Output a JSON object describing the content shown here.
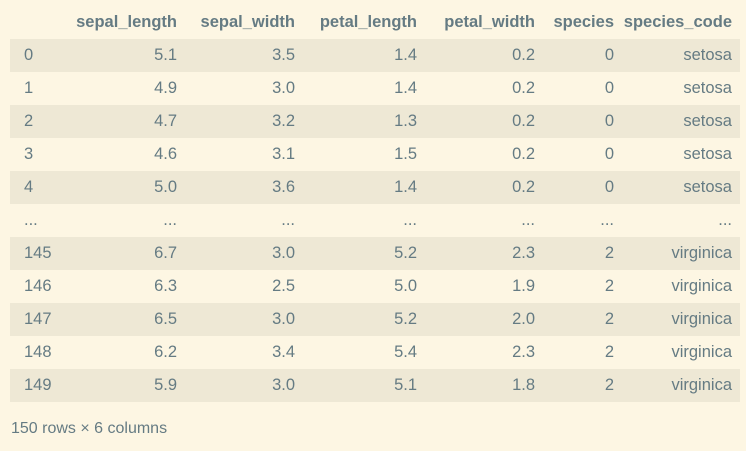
{
  "table": {
    "index_header": "",
    "columns": [
      "sepal_length",
      "sepal_width",
      "petal_length",
      "petal_width",
      "species",
      "species_code"
    ],
    "rows": [
      {
        "index": "0",
        "cells": [
          "5.1",
          "3.5",
          "1.4",
          "0.2",
          "0",
          "setosa"
        ]
      },
      {
        "index": "1",
        "cells": [
          "4.9",
          "3.0",
          "1.4",
          "0.2",
          "0",
          "setosa"
        ]
      },
      {
        "index": "2",
        "cells": [
          "4.7",
          "3.2",
          "1.3",
          "0.2",
          "0",
          "setosa"
        ]
      },
      {
        "index": "3",
        "cells": [
          "4.6",
          "3.1",
          "1.5",
          "0.2",
          "0",
          "setosa"
        ]
      },
      {
        "index": "4",
        "cells": [
          "5.0",
          "3.6",
          "1.4",
          "0.2",
          "0",
          "setosa"
        ]
      },
      {
        "index": "...",
        "cells": [
          "...",
          "...",
          "...",
          "...",
          "...",
          "..."
        ]
      },
      {
        "index": "145",
        "cells": [
          "6.7",
          "3.0",
          "5.2",
          "2.3",
          "2",
          "virginica"
        ]
      },
      {
        "index": "146",
        "cells": [
          "6.3",
          "2.5",
          "5.0",
          "1.9",
          "2",
          "virginica"
        ]
      },
      {
        "index": "147",
        "cells": [
          "6.5",
          "3.0",
          "5.2",
          "2.0",
          "2",
          "virginica"
        ]
      },
      {
        "index": "148",
        "cells": [
          "6.2",
          "3.4",
          "5.4",
          "2.3",
          "2",
          "virginica"
        ]
      },
      {
        "index": "149",
        "cells": [
          "5.9",
          "3.0",
          "5.1",
          "1.8",
          "2",
          "virginica"
        ]
      }
    ]
  },
  "footer": {
    "shape_text": "150 rows × 6 columns"
  },
  "colors": {
    "background": "#fdf6e3",
    "stripe": "#eee8d5",
    "text": "#657b83"
  }
}
